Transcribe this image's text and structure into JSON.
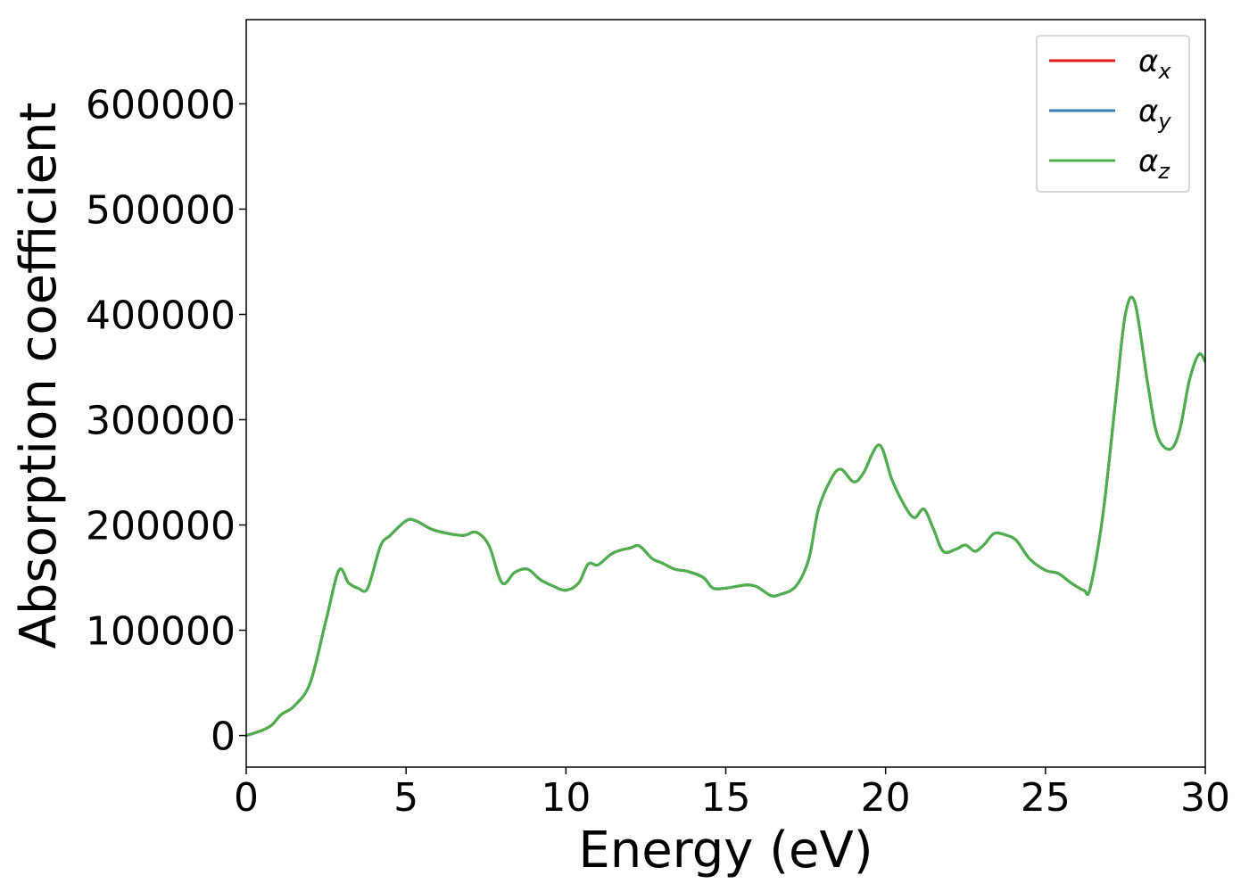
{
  "chart_data": {
    "type": "line",
    "xlabel": "Energy (eV)",
    "ylabel": "Absorption coefficient",
    "xlim": [
      0,
      30
    ],
    "ylim": [
      -30000,
      680000
    ],
    "xticks": [
      0,
      5,
      10,
      15,
      20,
      25,
      30
    ],
    "xtick_labels": [
      "0",
      "5",
      "10",
      "15",
      "20",
      "25",
      "30"
    ],
    "yticks": [
      0,
      100000,
      200000,
      300000,
      400000,
      500000,
      600000
    ],
    "ytick_labels": [
      "0",
      "100000",
      "200000",
      "300000",
      "400000",
      "500000",
      "600000"
    ],
    "grid": false,
    "legend_position": "top-right",
    "x": [
      0,
      0.5,
      0.8,
      1.1,
      1.5,
      2.0,
      2.5,
      2.9,
      3.2,
      3.5,
      3.8,
      4.2,
      4.5,
      5.0,
      5.3,
      5.8,
      6.3,
      6.8,
      7.2,
      7.6,
      8.0,
      8.4,
      8.8,
      9.2,
      9.6,
      10.0,
      10.4,
      10.7,
      11.0,
      11.4,
      11.7,
      12.0,
      12.3,
      12.7,
      13.0,
      13.4,
      13.8,
      14.3,
      14.6,
      15.0,
      15.4,
      15.7,
      16.0,
      16.4,
      16.7,
      17.2,
      17.6,
      17.9,
      18.3,
      18.6,
      19.0,
      19.3,
      19.8,
      20.2,
      20.6,
      20.9,
      21.2,
      21.5,
      21.8,
      22.2,
      22.5,
      22.8,
      23.1,
      23.4,
      23.8,
      24.1,
      24.5,
      25.0,
      25.4,
      25.8,
      26.2,
      26.4,
      26.8,
      27.2,
      27.5,
      27.8,
      28.2,
      28.5,
      28.9,
      29.2,
      29.5,
      29.8,
      30.0
    ],
    "series": [
      {
        "name": "αx",
        "color": "#e41a1c",
        "y": [
          0,
          5000,
          10000,
          20000,
          28000,
          50000,
          110000,
          157000,
          145000,
          140000,
          140000,
          180000,
          190000,
          204000,
          204000,
          196000,
          192000,
          190000,
          193000,
          180000,
          145000,
          155000,
          158000,
          148000,
          142000,
          138000,
          145000,
          163000,
          162000,
          172000,
          176000,
          178000,
          180000,
          168000,
          164000,
          158000,
          156000,
          150000,
          140000,
          140000,
          142000,
          143000,
          141000,
          133000,
          134000,
          142000,
          168000,
          215000,
          244000,
          253000,
          241000,
          249000,
          276000,
          243000,
          218000,
          207000,
          215000,
          196000,
          175000,
          177000,
          181000,
          175000,
          182000,
          192000,
          190000,
          185000,
          168000,
          157000,
          154000,
          145000,
          138000,
          140000,
          210000,
          320000,
          400000,
          411000,
          334000,
          285000,
          272000,
          290000,
          337000,
          362000,
          355000
        ]
      },
      {
        "name": "αy",
        "color": "#377eb8",
        "y": [
          0,
          5000,
          10000,
          20000,
          28000,
          50000,
          110000,
          157000,
          145000,
          140000,
          140000,
          180000,
          190000,
          204000,
          204000,
          196000,
          192000,
          190000,
          193000,
          180000,
          145000,
          155000,
          158000,
          148000,
          142000,
          138000,
          145000,
          163000,
          162000,
          172000,
          176000,
          178000,
          180000,
          168000,
          164000,
          158000,
          156000,
          150000,
          140000,
          140000,
          142000,
          143000,
          141000,
          133000,
          134000,
          142000,
          168000,
          215000,
          244000,
          253000,
          241000,
          249000,
          276000,
          243000,
          218000,
          207000,
          215000,
          196000,
          175000,
          177000,
          181000,
          175000,
          182000,
          192000,
          190000,
          185000,
          168000,
          157000,
          154000,
          145000,
          138000,
          140000,
          210000,
          320000,
          400000,
          411000,
          334000,
          285000,
          272000,
          290000,
          337000,
          362000,
          355000
        ]
      },
      {
        "name": "αz",
        "color": "#4daf4a",
        "y": [
          0,
          5000,
          10000,
          20000,
          28000,
          50000,
          110000,
          157000,
          145000,
          140000,
          140000,
          180000,
          190000,
          204000,
          204000,
          196000,
          192000,
          190000,
          193000,
          180000,
          145000,
          155000,
          158000,
          148000,
          142000,
          138000,
          145000,
          163000,
          162000,
          172000,
          176000,
          178000,
          180000,
          168000,
          164000,
          158000,
          156000,
          150000,
          140000,
          140000,
          142000,
          143000,
          141000,
          133000,
          134000,
          142000,
          168000,
          215000,
          244000,
          253000,
          241000,
          249000,
          276000,
          243000,
          218000,
          207000,
          215000,
          196000,
          175000,
          177000,
          181000,
          175000,
          182000,
          192000,
          190000,
          185000,
          168000,
          157000,
          154000,
          145000,
          138000,
          140000,
          210000,
          320000,
          400000,
          411000,
          334000,
          285000,
          272000,
          290000,
          337000,
          362000,
          355000
        ]
      }
    ],
    "legend": [
      {
        "symbol": "α",
        "sub": "x",
        "color": "#e41a1c"
      },
      {
        "symbol": "α",
        "sub": "y",
        "color": "#377eb8"
      },
      {
        "symbol": "α",
        "sub": "z",
        "color": "#4daf4a"
      }
    ]
  }
}
